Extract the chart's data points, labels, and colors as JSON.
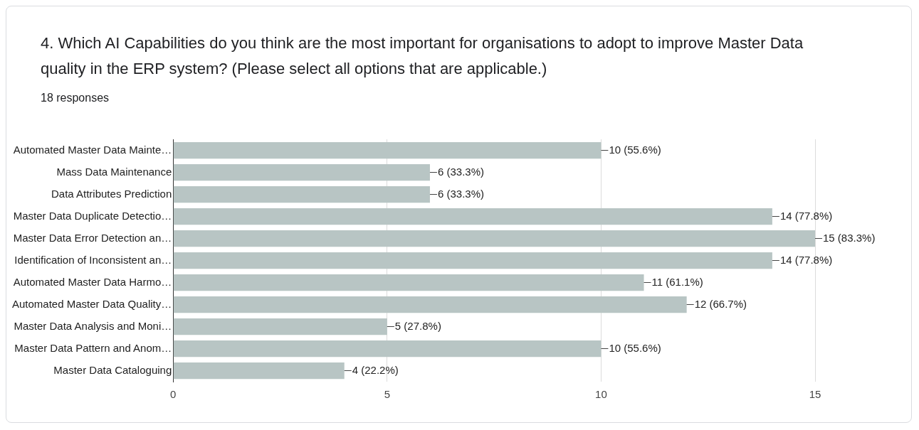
{
  "chart_data": {
    "type": "bar",
    "orientation": "horizontal",
    "title": "4. Which AI Capabilities do you think are the most important for organisations to adopt to improve Master Data quality in the ERP system?  (Please select all options that are applicable.)",
    "subtitle": "18 responses",
    "categories": [
      "Automated Master Data Mainte…",
      "Mass Data Maintenance",
      "Data Attributes Prediction",
      "Master Data Duplicate Detectio…",
      "Master Data Error Detection an…",
      "Identification of Inconsistent an…",
      "Automated Master Data Harmo…",
      "Automated Master Data Quality…",
      "Master Data Analysis and Moni…",
      "Master Data Pattern and Anom…",
      "Master Data Cataloguing"
    ],
    "values": [
      10,
      6,
      6,
      14,
      15,
      14,
      11,
      12,
      5,
      10,
      4
    ],
    "value_labels": [
      "10 (55.6%)",
      "6 (33.3%)",
      "6 (33.3%)",
      "14 (77.8%)",
      "15 (83.3%)",
      "14 (77.8%)",
      "11 (61.1%)",
      "12 (66.7%)",
      "5 (27.8%)",
      "10 (55.6%)",
      "4 (22.2%)"
    ],
    "color": "#b8c5c4",
    "xlim": [
      0,
      15
    ],
    "xticks": [
      0,
      5,
      10,
      15
    ],
    "grid": "x",
    "legend": false
  }
}
